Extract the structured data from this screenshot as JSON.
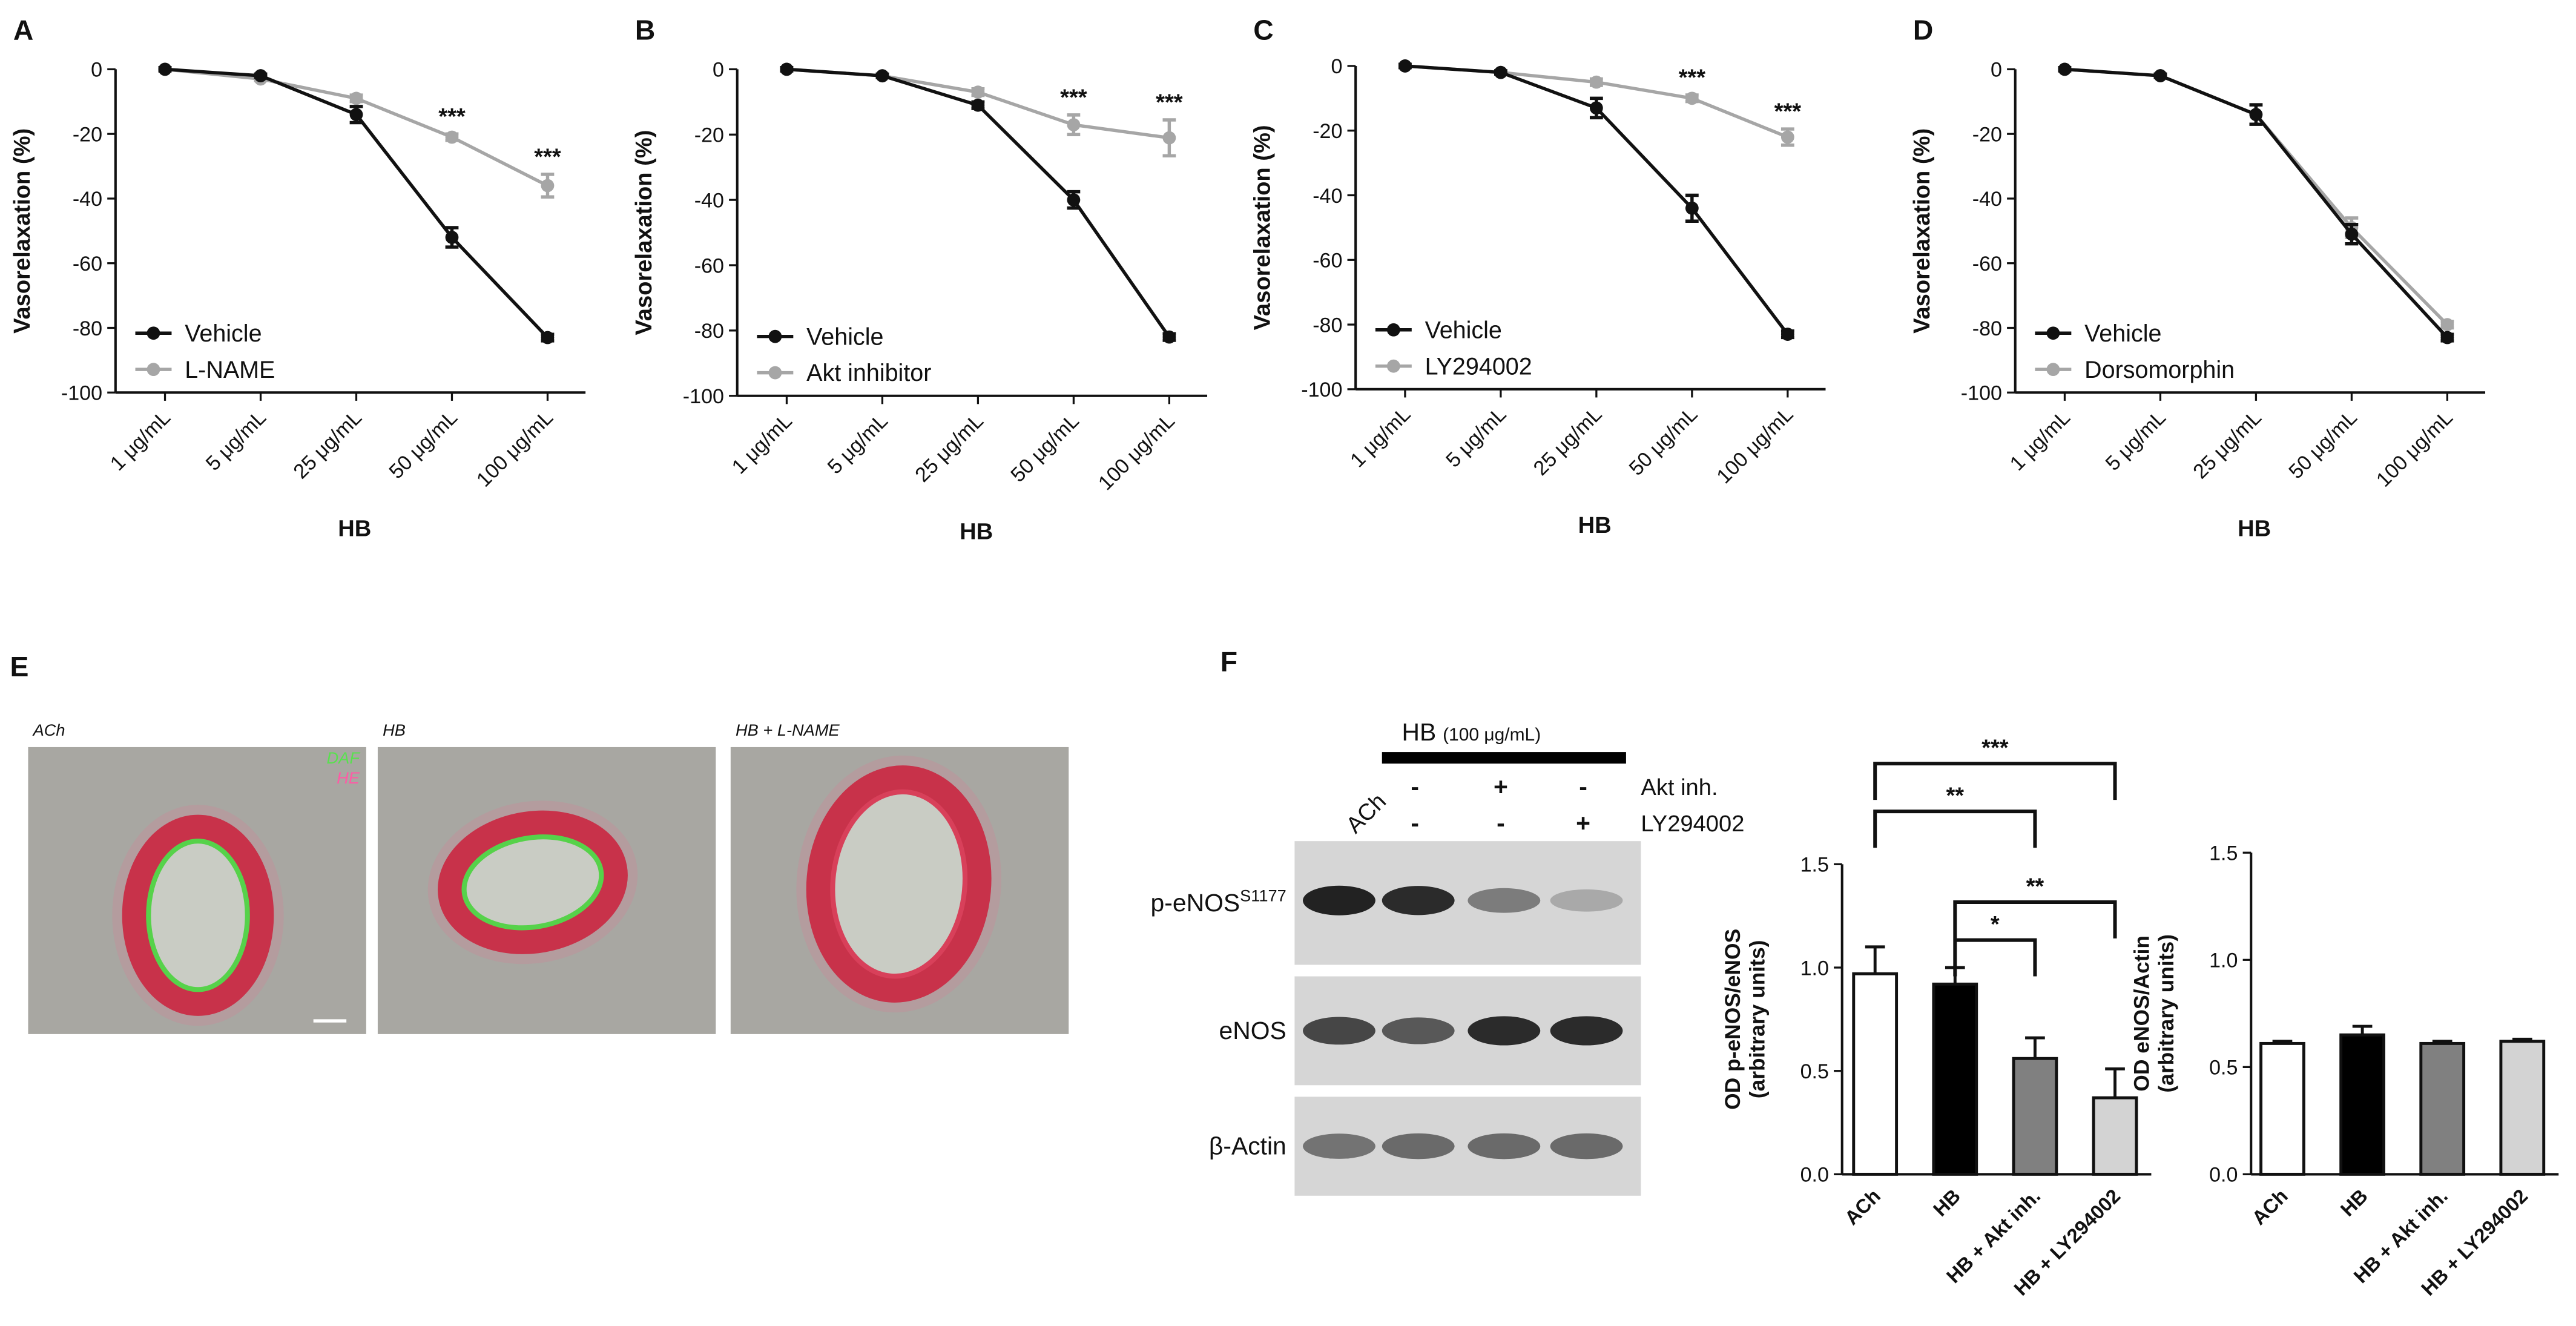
{
  "chart_data": [
    {
      "type": "line",
      "panel": "A",
      "categories": [
        "1 μg/mL",
        "5 μg/mL",
        "25 μg/mL",
        "50 μg/mL",
        "100 μg/mL"
      ],
      "x_label": "HB",
      "y_label": "Vasorelaxation (%)",
      "ylim": [
        -100,
        0
      ],
      "yticks": [
        0,
        -20,
        -40,
        -60,
        -80,
        -100
      ],
      "legend": "lower left",
      "series": [
        {
          "name": "Vehicle",
          "color": "#111111",
          "values": [
            0,
            -2,
            -14,
            -52,
            -83
          ],
          "errors": [
            0.5,
            0.5,
            2.5,
            3,
            1
          ]
        },
        {
          "name": "L-NAME",
          "color": "#a6a6a6",
          "values": [
            0,
            -3,
            -9,
            -21,
            -36
          ],
          "errors": [
            0.5,
            0.5,
            1,
            1,
            3.5
          ],
          "significance": [
            null,
            null,
            null,
            "***",
            "***"
          ]
        }
      ]
    },
    {
      "type": "line",
      "panel": "B",
      "categories": [
        "1 μg/mL",
        "5 μg/mL",
        "25 μg/mL",
        "50 μg/mL",
        "100 μg/mL"
      ],
      "x_label": "HB",
      "y_label": "Vasorelaxation (%)",
      "ylim": [
        -100,
        0
      ],
      "yticks": [
        0,
        -20,
        -40,
        -60,
        -80,
        -100
      ],
      "legend": "lower left",
      "series": [
        {
          "name": "Vehicle",
          "color": "#111111",
          "values": [
            0,
            -2,
            -11,
            -40,
            -82
          ],
          "errors": [
            0.5,
            0.5,
            1,
            2.5,
            1
          ]
        },
        {
          "name": "Akt inhibitor",
          "color": "#a6a6a6",
          "values": [
            0,
            -2,
            -7,
            -17,
            -21
          ],
          "errors": [
            0.5,
            0.5,
            1,
            3,
            5.5
          ],
          "significance": [
            null,
            null,
            null,
            "***",
            "***"
          ]
        }
      ]
    },
    {
      "type": "line",
      "panel": "C",
      "categories": [
        "1 μg/mL",
        "5 μg/mL",
        "25 μg/mL",
        "50 μg/mL",
        "100 μg/mL"
      ],
      "x_label": "HB",
      "y_label": "Vasorelaxation (%)",
      "ylim": [
        -100,
        0
      ],
      "yticks": [
        0,
        -20,
        -40,
        -60,
        -80,
        -100
      ],
      "legend": "lower left",
      "series": [
        {
          "name": "Vehicle",
          "color": "#111111",
          "values": [
            0,
            -2,
            -13,
            -44,
            -83
          ],
          "errors": [
            0.5,
            0.5,
            3,
            4,
            1
          ]
        },
        {
          "name": "LY294002",
          "color": "#a6a6a6",
          "values": [
            0,
            -2,
            -5,
            -10,
            -22
          ],
          "errors": [
            0.5,
            0.5,
            1,
            1,
            2.5
          ],
          "significance": [
            null,
            null,
            null,
            "***",
            "***"
          ]
        }
      ]
    },
    {
      "type": "line",
      "panel": "D",
      "categories": [
        "1 μg/mL",
        "5 μg/mL",
        "25 μg/mL",
        "50 μg/mL",
        "100 μg/mL"
      ],
      "x_label": "HB",
      "y_label": "Vasorelaxation (%)",
      "ylim": [
        -100,
        0
      ],
      "yticks": [
        0,
        -20,
        -40,
        -60,
        -80,
        -100
      ],
      "legend": "lower left",
      "series": [
        {
          "name": "Vehicle",
          "color": "#111111",
          "values": [
            0,
            -2,
            -14,
            -51,
            -83
          ],
          "errors": [
            0.5,
            0.5,
            3,
            3,
            1
          ]
        },
        {
          "name": "Dorsomorphin",
          "color": "#a6a6a6",
          "values": [
            0,
            -2,
            -14,
            -49,
            -79
          ],
          "errors": [
            0.5,
            0.5,
            3,
            3,
            1
          ]
        }
      ]
    },
    {
      "type": "bar",
      "categories": [
        "ACh",
        "HB",
        "HB + Akt inh.",
        "HB + LY294002"
      ],
      "y_label": [
        "OD p-eNOS/eNOS",
        "(arbitrary units)"
      ],
      "ylim": [
        0,
        1.5
      ],
      "yticks": [
        {
          "value": 0,
          "label": "0.0"
        },
        0.5,
        {
          "value": 1,
          "label": "1.0"
        },
        1.5
      ],
      "colors": [
        "#ffffff",
        "#000000",
        "#808080",
        "#d3d3d3"
      ],
      "values": [
        0.97,
        0.92,
        0.56,
        0.37
      ],
      "errors": [
        0.13,
        0.08,
        0.1,
        0.14
      ],
      "comparisons": [
        "***",
        "**",
        "**",
        "*"
      ]
    },
    {
      "type": "bar",
      "categories": [
        "ACh",
        "HB",
        "HB + Akt inh.",
        "HB + LY294002"
      ],
      "y_label": [
        "OD eNOS/Actin",
        "(arbitrary units)"
      ],
      "ylim": [
        0,
        1.5
      ],
      "yticks": [
        {
          "value": 0,
          "label": "0.0"
        },
        0.5,
        {
          "value": 1,
          "label": "1.0"
        },
        1.5
      ],
      "colors": [
        "#ffffff",
        "#000000",
        "#808080",
        "#d3d3d3"
      ],
      "values": [
        0.61,
        0.65,
        0.61,
        0.62
      ],
      "errors": [
        0.01,
        0.04,
        0.01,
        0.01
      ]
    }
  ],
  "panel_e": {
    "label": "E",
    "images": [
      {
        "caption": "ACh"
      },
      {
        "caption": "HB"
      },
      {
        "caption": "HB + L-NAME"
      }
    ],
    "stains": [
      "DAF",
      "HE"
    ]
  },
  "panel_f": {
    "label": "F",
    "treatment": "HB",
    "dose": "(100 μg/mL)",
    "control": "ACh",
    "rows": [
      {
        "name": "Akt inh.",
        "signs": [
          "-",
          "+",
          "-"
        ]
      },
      {
        "name": "LY294002",
        "signs": [
          "-",
          "-",
          "+"
        ]
      }
    ],
    "blots": [
      {
        "name": "p-eNOS",
        "site": "S1177"
      },
      {
        "name": "eNOS"
      },
      {
        "name": "β-Actin"
      }
    ]
  }
}
